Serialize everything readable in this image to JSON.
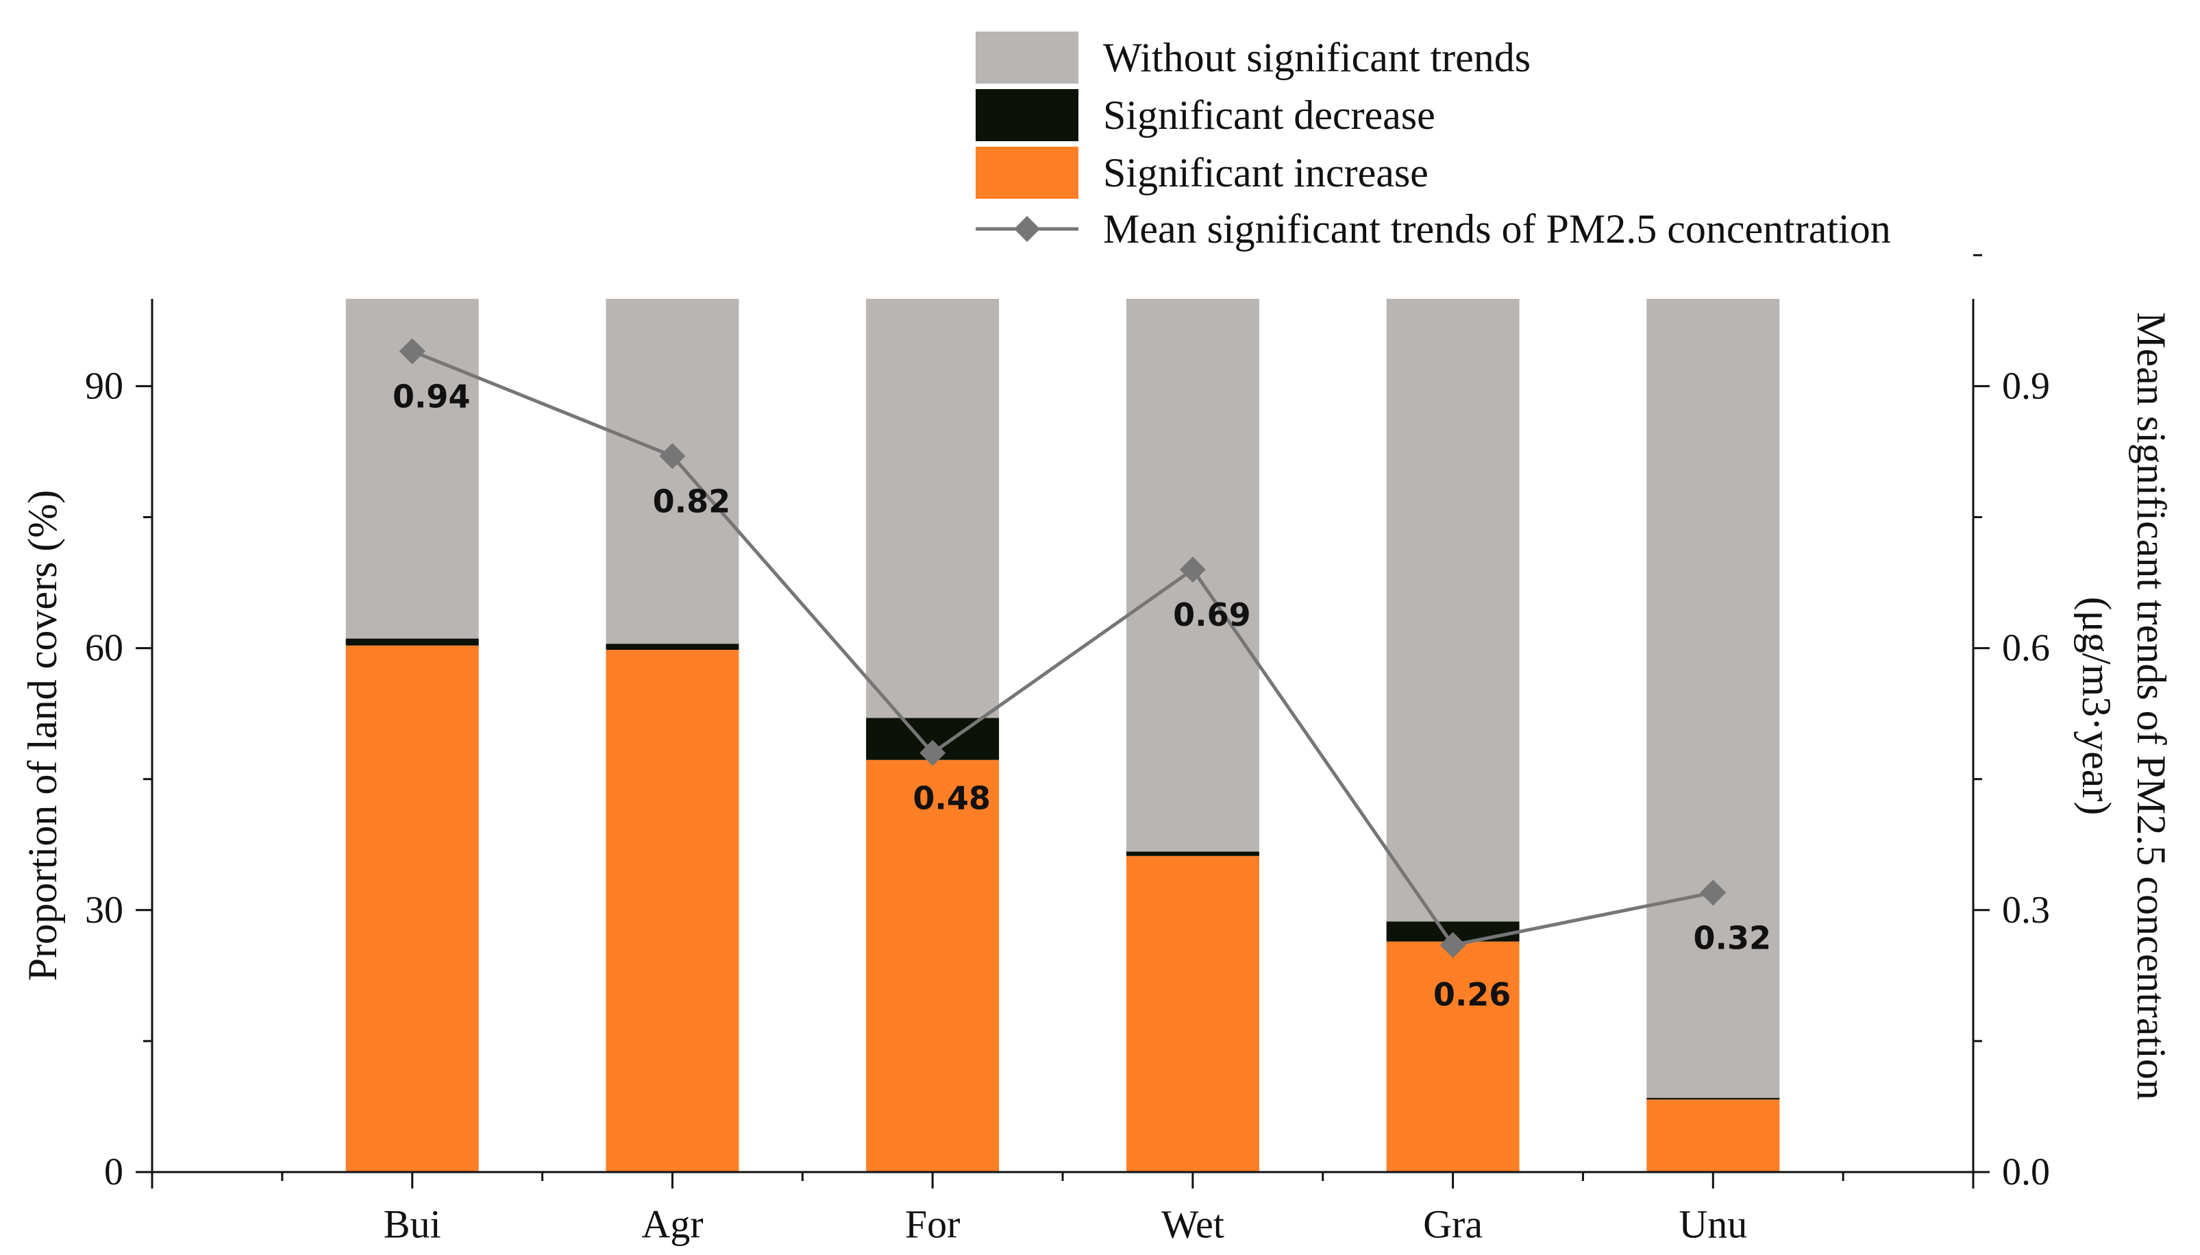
{
  "chart_data": {
    "type": "bar",
    "subtype": "stacked bar with line on secondary axis",
    "categories": [
      "Bui",
      "Agr",
      "For",
      "Wet",
      "Gra",
      "Unu"
    ],
    "series": [
      {
        "name": "Significant increase",
        "kind": "bar",
        "axis": "left",
        "color": "#FF7F27",
        "values": [
          60.3,
          59.8,
          47.2,
          36.2,
          26.4,
          8.3
        ]
      },
      {
        "name": "Significant decrease",
        "kind": "bar",
        "axis": "left",
        "color": "#0D1208",
        "values": [
          0.8,
          0.7,
          4.8,
          0.5,
          2.3,
          0.2
        ]
      },
      {
        "name": "Without significant trends",
        "kind": "bar",
        "axis": "left",
        "color": "#B9B5B3",
        "values": [
          38.9,
          39.5,
          48.0,
          63.3,
          71.3,
          91.5
        ]
      },
      {
        "name": "Mean significant trends of PM2.5 concentration",
        "kind": "line",
        "axis": "right",
        "color": "#767676",
        "values": [
          0.94,
          0.82,
          0.48,
          0.69,
          0.26,
          0.32
        ],
        "labels": [
          "0.94",
          "0.82",
          "0.48",
          "0.69",
          "0.26",
          "0.32"
        ]
      }
    ],
    "legend_order": [
      "Without significant trends",
      "Significant decrease",
      "Significant increase",
      "Mean significant trends of PM2.5 concentration"
    ],
    "ylabel": "Proportion of land covers (%)",
    "y2label_line1": "Mean significant trends of PM2.5 concentration",
    "y2label_line2": "(μg/m3·year)",
    "ylim": [
      0,
      100
    ],
    "y2lim": [
      0,
      1.0
    ],
    "yticks": [
      0,
      30,
      60,
      90
    ],
    "yticklabels": [
      "0",
      "30",
      "60",
      "90"
    ],
    "y2ticks": [
      0.0,
      0.3,
      0.6,
      0.9
    ],
    "y2ticklabels": [
      "0.0",
      "0.3",
      "0.6",
      "0.9"
    ],
    "xlim": [
      -1,
      6
    ],
    "legend_position": "top-right",
    "grid": false
  }
}
